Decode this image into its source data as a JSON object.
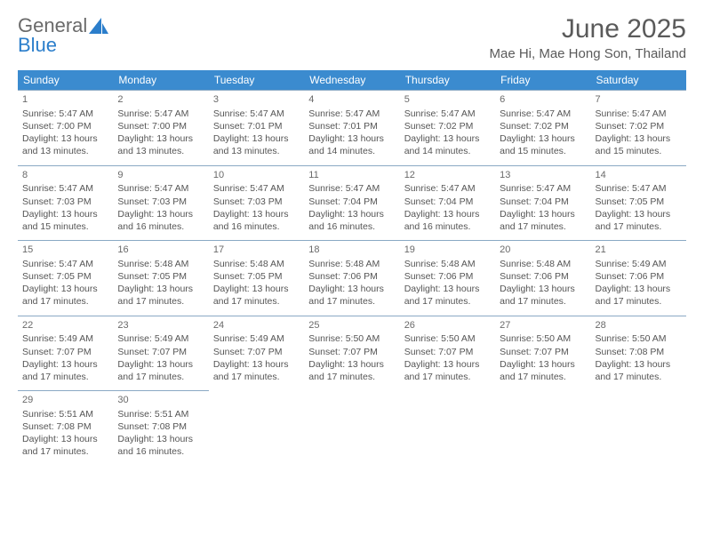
{
  "logo": {
    "part1": "General",
    "part2": "Blue"
  },
  "title": "June 2025",
  "location": "Mae Hi, Mae Hong Son, Thailand",
  "colors": {
    "header_bg": "#3b8bcf",
    "header_text": "#ffffff",
    "border": "#8aa9c4",
    "text": "#555555",
    "title_text": "#5a5a5a",
    "logo_gray": "#6a6a6a",
    "logo_blue": "#2b7ecb",
    "background": "#ffffff"
  },
  "weekdays": [
    "Sunday",
    "Monday",
    "Tuesday",
    "Wednesday",
    "Thursday",
    "Friday",
    "Saturday"
  ],
  "weeks": [
    [
      {
        "num": "1",
        "sunrise": "Sunrise: 5:47 AM",
        "sunset": "Sunset: 7:00 PM",
        "day": "Daylight: 13 hours and 13 minutes."
      },
      {
        "num": "2",
        "sunrise": "Sunrise: 5:47 AM",
        "sunset": "Sunset: 7:00 PM",
        "day": "Daylight: 13 hours and 13 minutes."
      },
      {
        "num": "3",
        "sunrise": "Sunrise: 5:47 AM",
        "sunset": "Sunset: 7:01 PM",
        "day": "Daylight: 13 hours and 13 minutes."
      },
      {
        "num": "4",
        "sunrise": "Sunrise: 5:47 AM",
        "sunset": "Sunset: 7:01 PM",
        "day": "Daylight: 13 hours and 14 minutes."
      },
      {
        "num": "5",
        "sunrise": "Sunrise: 5:47 AM",
        "sunset": "Sunset: 7:02 PM",
        "day": "Daylight: 13 hours and 14 minutes."
      },
      {
        "num": "6",
        "sunrise": "Sunrise: 5:47 AM",
        "sunset": "Sunset: 7:02 PM",
        "day": "Daylight: 13 hours and 15 minutes."
      },
      {
        "num": "7",
        "sunrise": "Sunrise: 5:47 AM",
        "sunset": "Sunset: 7:02 PM",
        "day": "Daylight: 13 hours and 15 minutes."
      }
    ],
    [
      {
        "num": "8",
        "sunrise": "Sunrise: 5:47 AM",
        "sunset": "Sunset: 7:03 PM",
        "day": "Daylight: 13 hours and 15 minutes."
      },
      {
        "num": "9",
        "sunrise": "Sunrise: 5:47 AM",
        "sunset": "Sunset: 7:03 PM",
        "day": "Daylight: 13 hours and 16 minutes."
      },
      {
        "num": "10",
        "sunrise": "Sunrise: 5:47 AM",
        "sunset": "Sunset: 7:03 PM",
        "day": "Daylight: 13 hours and 16 minutes."
      },
      {
        "num": "11",
        "sunrise": "Sunrise: 5:47 AM",
        "sunset": "Sunset: 7:04 PM",
        "day": "Daylight: 13 hours and 16 minutes."
      },
      {
        "num": "12",
        "sunrise": "Sunrise: 5:47 AM",
        "sunset": "Sunset: 7:04 PM",
        "day": "Daylight: 13 hours and 16 minutes."
      },
      {
        "num": "13",
        "sunrise": "Sunrise: 5:47 AM",
        "sunset": "Sunset: 7:04 PM",
        "day": "Daylight: 13 hours and 17 minutes."
      },
      {
        "num": "14",
        "sunrise": "Sunrise: 5:47 AM",
        "sunset": "Sunset: 7:05 PM",
        "day": "Daylight: 13 hours and 17 minutes."
      }
    ],
    [
      {
        "num": "15",
        "sunrise": "Sunrise: 5:47 AM",
        "sunset": "Sunset: 7:05 PM",
        "day": "Daylight: 13 hours and 17 minutes."
      },
      {
        "num": "16",
        "sunrise": "Sunrise: 5:48 AM",
        "sunset": "Sunset: 7:05 PM",
        "day": "Daylight: 13 hours and 17 minutes."
      },
      {
        "num": "17",
        "sunrise": "Sunrise: 5:48 AM",
        "sunset": "Sunset: 7:05 PM",
        "day": "Daylight: 13 hours and 17 minutes."
      },
      {
        "num": "18",
        "sunrise": "Sunrise: 5:48 AM",
        "sunset": "Sunset: 7:06 PM",
        "day": "Daylight: 13 hours and 17 minutes."
      },
      {
        "num": "19",
        "sunrise": "Sunrise: 5:48 AM",
        "sunset": "Sunset: 7:06 PM",
        "day": "Daylight: 13 hours and 17 minutes."
      },
      {
        "num": "20",
        "sunrise": "Sunrise: 5:48 AM",
        "sunset": "Sunset: 7:06 PM",
        "day": "Daylight: 13 hours and 17 minutes."
      },
      {
        "num": "21",
        "sunrise": "Sunrise: 5:49 AM",
        "sunset": "Sunset: 7:06 PM",
        "day": "Daylight: 13 hours and 17 minutes."
      }
    ],
    [
      {
        "num": "22",
        "sunrise": "Sunrise: 5:49 AM",
        "sunset": "Sunset: 7:07 PM",
        "day": "Daylight: 13 hours and 17 minutes."
      },
      {
        "num": "23",
        "sunrise": "Sunrise: 5:49 AM",
        "sunset": "Sunset: 7:07 PM",
        "day": "Daylight: 13 hours and 17 minutes."
      },
      {
        "num": "24",
        "sunrise": "Sunrise: 5:49 AM",
        "sunset": "Sunset: 7:07 PM",
        "day": "Daylight: 13 hours and 17 minutes."
      },
      {
        "num": "25",
        "sunrise": "Sunrise: 5:50 AM",
        "sunset": "Sunset: 7:07 PM",
        "day": "Daylight: 13 hours and 17 minutes."
      },
      {
        "num": "26",
        "sunrise": "Sunrise: 5:50 AM",
        "sunset": "Sunset: 7:07 PM",
        "day": "Daylight: 13 hours and 17 minutes."
      },
      {
        "num": "27",
        "sunrise": "Sunrise: 5:50 AM",
        "sunset": "Sunset: 7:07 PM",
        "day": "Daylight: 13 hours and 17 minutes."
      },
      {
        "num": "28",
        "sunrise": "Sunrise: 5:50 AM",
        "sunset": "Sunset: 7:08 PM",
        "day": "Daylight: 13 hours and 17 minutes."
      }
    ],
    [
      {
        "num": "29",
        "sunrise": "Sunrise: 5:51 AM",
        "sunset": "Sunset: 7:08 PM",
        "day": "Daylight: 13 hours and 17 minutes."
      },
      {
        "num": "30",
        "sunrise": "Sunrise: 5:51 AM",
        "sunset": "Sunset: 7:08 PM",
        "day": "Daylight: 13 hours and 16 minutes."
      },
      null,
      null,
      null,
      null,
      null
    ]
  ]
}
